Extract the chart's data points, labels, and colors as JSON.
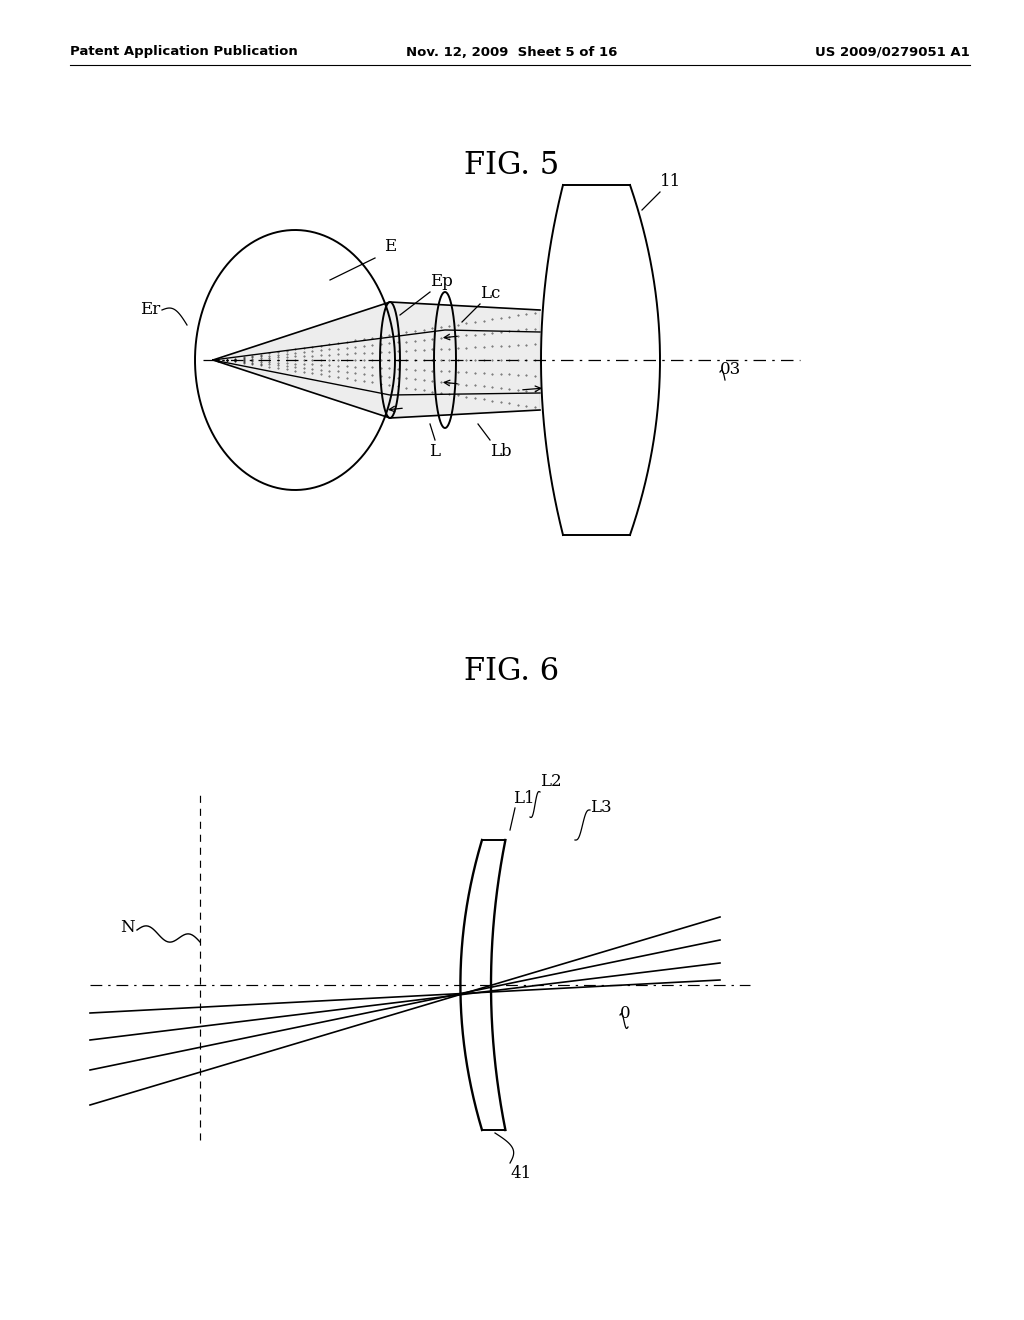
{
  "bg_color": "#ffffff",
  "header_left": "Patent Application Publication",
  "header_mid": "Nov. 12, 2009  Sheet 5 of 16",
  "header_right": "US 2009/0279051 A1",
  "fig5_title": "FIG. 5",
  "fig6_title": "FIG. 6"
}
